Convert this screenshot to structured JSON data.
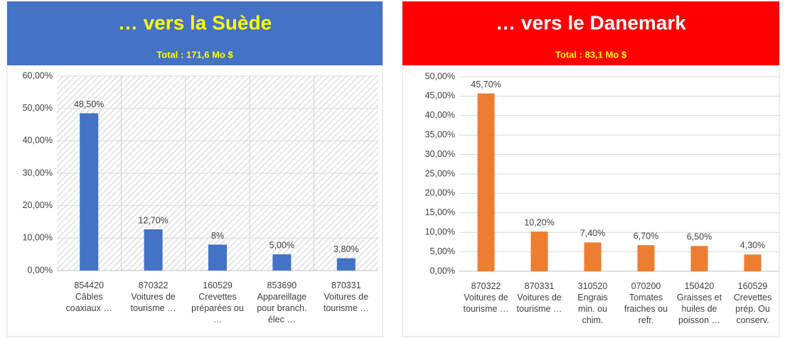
{
  "chart_data": [
    {
      "type": "bar",
      "title": "… vers la Suède",
      "subtitle": "Total : 171,6 Mo $",
      "header_color": "#4472c4",
      "title_color": "#ffff00",
      "subtitle_color": "#ffff00",
      "categories": [
        "854420\nCâbles\ncoaxiaux …",
        "870322\nVoitures de\ntourisme …",
        "160529\nCrevettes\npréparées ou\n…",
        "853690\nAppareillage\npour branch.\nélec …",
        "870331\nVoitures de\ntourisme …"
      ],
      "values": [
        48.5,
        12.7,
        8,
        5,
        3.8
      ],
      "value_labels": [
        "48,50%",
        "12,70%",
        "8%",
        "5,00%",
        "3,80%"
      ],
      "color": "#4472c4",
      "hatch": true,
      "grid": true,
      "ylim": [
        0,
        60
      ],
      "yticks": [
        {
          "value": 0,
          "label": "0,00%"
        },
        {
          "value": 10,
          "label": "10,00%"
        },
        {
          "value": 20,
          "label": "20,00%"
        },
        {
          "value": 30,
          "label": "30,00%"
        },
        {
          "value": 40,
          "label": "40,00%"
        },
        {
          "value": 50,
          "label": "50,00%"
        },
        {
          "value": 60,
          "label": "60,00%"
        }
      ]
    },
    {
      "type": "bar",
      "title": "… vers le Danemark",
      "subtitle": "Total :  83,1 Mo $",
      "header_color": "#ff0000",
      "title_color": "#ffffff",
      "subtitle_color": "#ffff00",
      "categories": [
        "870322\nVoitures de\ntourisme …",
        "870331\nVoitures de\ntourisme …",
        "310520\nEngrais\nmin. ou\nchim.",
        "070200\nTomates\nfraiches ou\nrefr.",
        "150420\nGraisses et\nhuiles de\npoisson …",
        "160529\nCrevettes\nprép. Ou\nconserv."
      ],
      "values": [
        45.7,
        10.2,
        7.4,
        6.7,
        6.5,
        4.3
      ],
      "value_labels": [
        "45,70%",
        "10,20%",
        "7,40%",
        "6,70%",
        "6,50%",
        "4,30%"
      ],
      "color": "#ed7d31",
      "hatch": false,
      "grid": true,
      "ylim": [
        0,
        50
      ],
      "yticks": [
        {
          "value": 0,
          "label": "0,00%"
        },
        {
          "value": 5,
          "label": "5,00%"
        },
        {
          "value": 10,
          "label": "10,00%"
        },
        {
          "value": 15,
          "label": "15,00%"
        },
        {
          "value": 20,
          "label": "20,00%"
        },
        {
          "value": 25,
          "label": "25,00%"
        },
        {
          "value": 30,
          "label": "30,00%"
        },
        {
          "value": 35,
          "label": "35,00%"
        },
        {
          "value": 40,
          "label": "40,00%"
        },
        {
          "value": 45,
          "label": "45,00%"
        },
        {
          "value": 50,
          "label": "50,00%"
        }
      ]
    }
  ]
}
